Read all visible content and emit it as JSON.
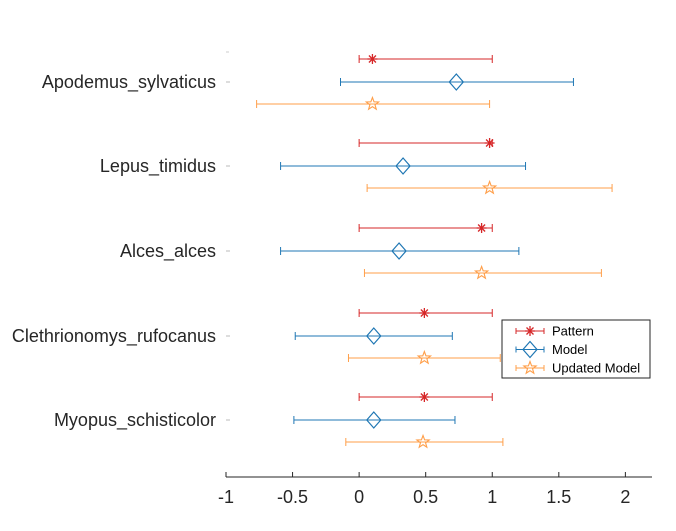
{
  "chart_data": {
    "type": "scatter",
    "orientation": "horizontal-errorbar",
    "title": "",
    "xlabel": "",
    "ylabel": "",
    "xlim": [
      -1,
      2.2
    ],
    "xticks": [
      -1,
      -0.5,
      0,
      0.5,
      1,
      1.5,
      2
    ],
    "xtick_labels": [
      "-1",
      "-0.5",
      "0",
      "0.5",
      "1",
      "1.5",
      "2"
    ],
    "grid": false,
    "legend_position": "right",
    "categories": [
      "Apodemus_sylvaticus",
      "Lepus_timidus",
      "Alces_alces",
      "Clethrionomys_rufocanus",
      "Myopus_schisticolor"
    ],
    "series": [
      {
        "name": "Pattern",
        "color": "#d62728",
        "marker": "asterisk",
        "points": [
          {
            "value": 0.1,
            "low": 0.0,
            "high": 1.0
          },
          {
            "value": 0.98,
            "low": 0.0,
            "high": 1.0
          },
          {
            "value": 0.92,
            "low": 0.0,
            "high": 1.0
          },
          {
            "value": 0.49,
            "low": 0.0,
            "high": 1.0
          },
          {
            "value": 0.49,
            "low": 0.0,
            "high": 1.0
          }
        ]
      },
      {
        "name": "Model",
        "color": "#1f77b4",
        "marker": "diamond",
        "points": [
          {
            "value": 0.73,
            "low": -0.14,
            "high": 1.61
          },
          {
            "value": 0.33,
            "low": -0.59,
            "high": 1.25
          },
          {
            "value": 0.3,
            "low": -0.59,
            "high": 1.2
          },
          {
            "value": 0.11,
            "low": -0.48,
            "high": 0.7
          },
          {
            "value": 0.11,
            "low": -0.49,
            "high": 0.72
          }
        ]
      },
      {
        "name": "Updated Model",
        "color": "#ff9f4a",
        "marker": "star",
        "points": [
          {
            "value": 0.1,
            "low": -0.77,
            "high": 0.98
          },
          {
            "value": 0.98,
            "low": 0.06,
            "high": 1.9
          },
          {
            "value": 0.92,
            "low": 0.04,
            "high": 1.82
          },
          {
            "value": 0.49,
            "low": -0.08,
            "high": 1.06
          },
          {
            "value": 0.48,
            "low": -0.1,
            "high": 1.08
          }
        ]
      }
    ]
  }
}
